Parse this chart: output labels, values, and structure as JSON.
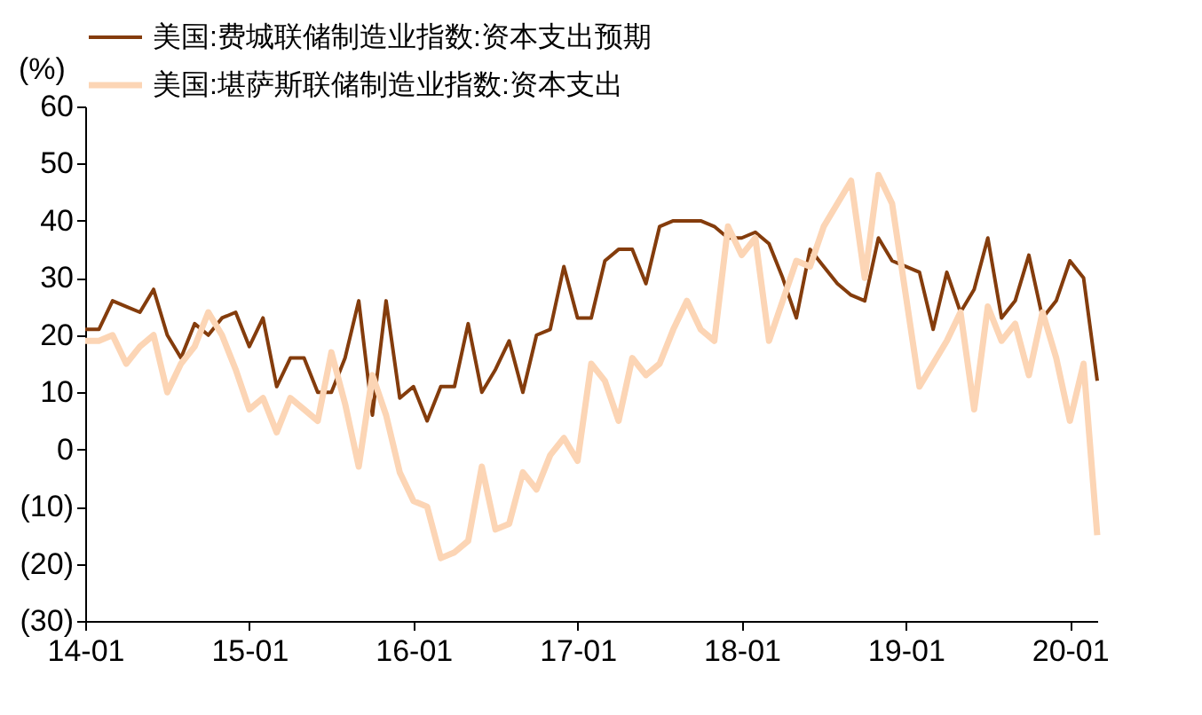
{
  "chart_data": {
    "type": "line",
    "ylabel": "(%)",
    "categories": [
      "14-01",
      null,
      null,
      null,
      null,
      null,
      null,
      null,
      null,
      null,
      null,
      null,
      "15-01",
      null,
      null,
      null,
      null,
      null,
      null,
      null,
      null,
      null,
      null,
      null,
      "16-01",
      null,
      null,
      null,
      null,
      null,
      null,
      null,
      null,
      null,
      null,
      null,
      "17-01",
      null,
      null,
      null,
      null,
      null,
      null,
      null,
      null,
      null,
      null,
      null,
      "18-01",
      null,
      null,
      null,
      null,
      null,
      null,
      null,
      null,
      null,
      null,
      null,
      "19-01",
      null,
      null,
      null,
      null,
      null,
      null,
      null,
      null,
      null,
      null,
      null,
      "20-01",
      null,
      null
    ],
    "series": [
      {
        "name": "美国:费城联储制造业指数:资本支出预期",
        "color": "#843c0c",
        "values": [
          21,
          21,
          26,
          25,
          24,
          28,
          20,
          16,
          22,
          20,
          23,
          24,
          18,
          23,
          11,
          16,
          16,
          10,
          10,
          16,
          26,
          6,
          26,
          9,
          11,
          5,
          11,
          11,
          22,
          10,
          14,
          19,
          10,
          20,
          21,
          32,
          23,
          23,
          33,
          35,
          35,
          29,
          39,
          40,
          40,
          40,
          39,
          37,
          37,
          38,
          36,
          30,
          23,
          35,
          32,
          29,
          27,
          26,
          37,
          33,
          32,
          31,
          21,
          31,
          24,
          28,
          37,
          23,
          26,
          34,
          23,
          26,
          33,
          30,
          12
        ]
      },
      {
        "name": "美国:堪萨斯联储制造业指数:资本支出",
        "color": "#fcd5b5",
        "values": [
          19,
          19,
          20,
          15,
          18,
          20,
          10,
          15,
          18,
          24,
          20,
          14,
          7,
          9,
          3,
          9,
          7,
          5,
          17,
          8,
          -3,
          13,
          6,
          -4,
          -9,
          -10,
          -19,
          -18,
          -16,
          -3,
          -14,
          -13,
          -4,
          -7,
          -1,
          2,
          -2,
          15,
          12,
          5,
          16,
          13,
          15,
          21,
          26,
          21,
          19,
          39,
          34,
          37,
          19,
          26,
          33,
          32,
          39,
          43,
          47,
          30,
          48,
          43,
          27,
          11,
          15,
          19,
          24,
          7,
          25,
          19,
          22,
          13,
          24,
          16,
          5,
          15,
          -15
        ]
      }
    ],
    "ylim": [
      -30,
      60
    ],
    "yticks": [
      {
        "value": -30,
        "label": "(30)"
      },
      {
        "value": -20,
        "label": "(20)"
      },
      {
        "value": -10,
        "label": "(10)"
      },
      0,
      10,
      20,
      30,
      40,
      50,
      60
    ],
    "grid": false,
    "legend": "top",
    "marker": "none",
    "line_style": "solid"
  }
}
